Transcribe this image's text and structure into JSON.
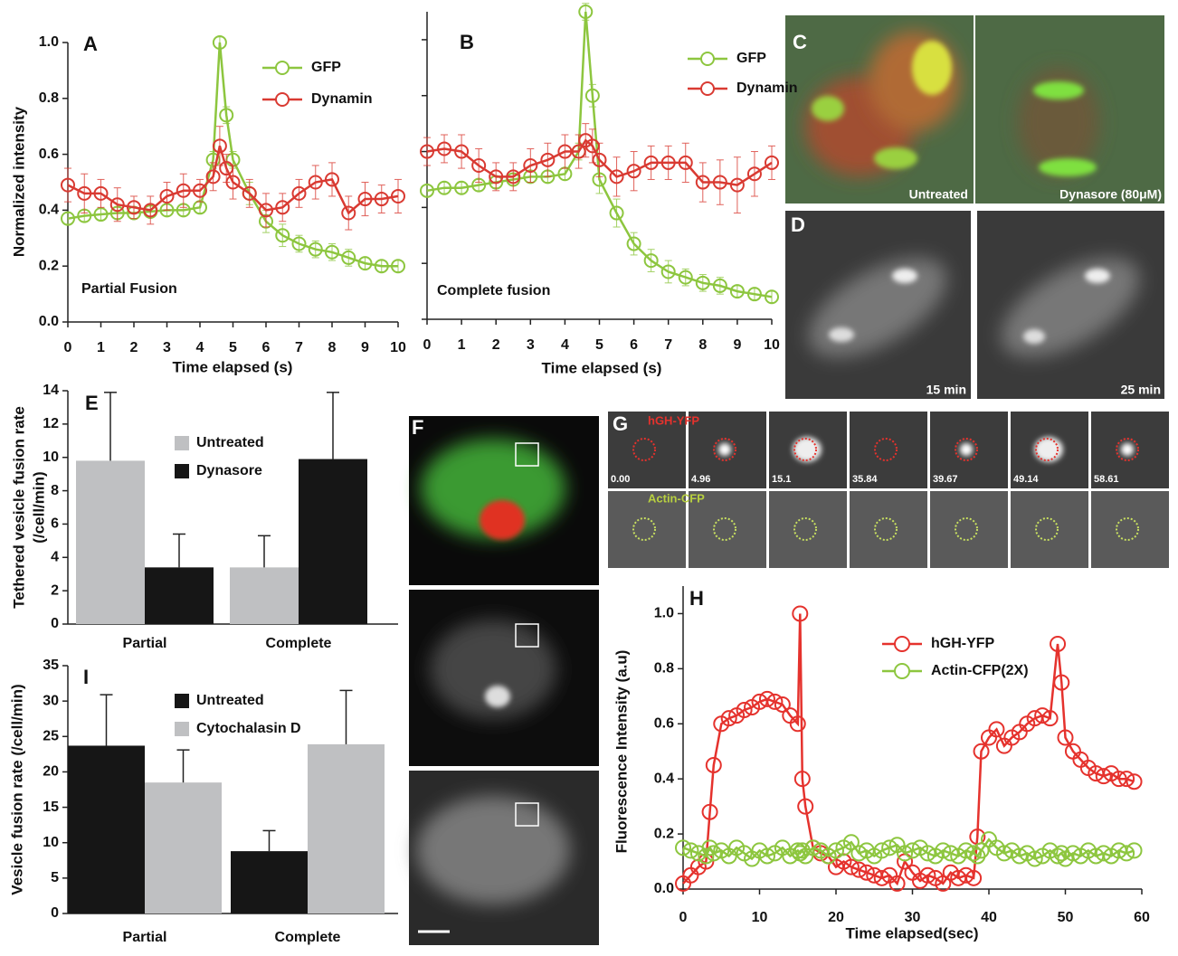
{
  "chart_data": [
    {
      "type": "line",
      "panel": "A",
      "ylabel": "Normalized intensity",
      "xlabel": "Time elapsed (s)",
      "annotation": "Partial Fusion",
      "legend": "upper right",
      "x": [
        0,
        0.5,
        1,
        1.5,
        2,
        2.5,
        3,
        3.5,
        4,
        4.4,
        4.6,
        4.8,
        5,
        5.5,
        6,
        6.5,
        7,
        7.5,
        8,
        8.5,
        9,
        9.5,
        10
      ],
      "series": [
        {
          "name": "GFP",
          "color": "#8dc63f",
          "values": [
            0.37,
            0.38,
            0.385,
            0.39,
            0.39,
            0.395,
            0.4,
            0.4,
            0.41,
            0.58,
            1.0,
            0.74,
            0.58,
            0.46,
            0.36,
            0.31,
            0.28,
            0.26,
            0.25,
            0.23,
            0.21,
            0.2,
            0.2
          ],
          "errors": [
            0.02,
            0.02,
            0.02,
            0.02,
            0.02,
            0.02,
            0.02,
            0.02,
            0.02,
            0.03,
            0.02,
            0.03,
            0.03,
            0.04,
            0.04,
            0.04,
            0.03,
            0.03,
            0.03,
            0.03,
            0.02,
            0.02,
            0.02
          ]
        },
        {
          "name": "Dynamin",
          "color": "#d93a32",
          "values": [
            0.49,
            0.46,
            0.46,
            0.42,
            0.41,
            0.4,
            0.45,
            0.47,
            0.47,
            0.52,
            0.63,
            0.55,
            0.5,
            0.46,
            0.4,
            0.41,
            0.46,
            0.5,
            0.51,
            0.39,
            0.44,
            0.44,
            0.45
          ],
          "errors": [
            0.06,
            0.07,
            0.05,
            0.06,
            0.04,
            0.05,
            0.05,
            0.06,
            0.04,
            0.05,
            0.07,
            0.05,
            0.06,
            0.05,
            0.06,
            0.05,
            0.05,
            0.06,
            0.06,
            0.06,
            0.06,
            0.05,
            0.06
          ]
        }
      ],
      "xlim": [
        0,
        10
      ],
      "xticks": [
        0,
        1,
        2,
        3,
        4,
        5,
        6,
        7,
        8,
        9,
        10
      ],
      "ylim": [
        0,
        1
      ],
      "yticks": [
        {
          "value": 0,
          "label": "0.0"
        },
        0.2,
        0.4,
        0.6,
        0.8,
        {
          "value": 1,
          "label": "1.0"
        }
      ]
    },
    {
      "type": "line",
      "panel": "B",
      "xlabel": "Time elapsed (s)",
      "annotation": "Complete fusion",
      "legend": "upper right",
      "ytick_labels": false,
      "x": [
        0,
        0.5,
        1,
        1.5,
        2,
        2.5,
        3,
        3.5,
        4,
        4.4,
        4.6,
        4.8,
        5,
        5.5,
        6,
        6.5,
        7,
        7.5,
        8,
        8.5,
        9,
        9.5,
        10
      ],
      "series": [
        {
          "name": "GFP",
          "color": "#8dc63f",
          "values": [
            0.46,
            0.47,
            0.47,
            0.48,
            0.49,
            0.5,
            0.51,
            0.51,
            0.52,
            0.6,
            1.1,
            0.8,
            0.5,
            0.38,
            0.27,
            0.21,
            0.17,
            0.15,
            0.13,
            0.12,
            0.1,
            0.09,
            0.08
          ],
          "errors": [
            0.02,
            0.02,
            0.02,
            0.02,
            0.02,
            0.02,
            0.02,
            0.02,
            0.02,
            0.03,
            0.03,
            0.04,
            0.05,
            0.05,
            0.04,
            0.04,
            0.04,
            0.03,
            0.03,
            0.03,
            0.02,
            0.02,
            0.02
          ]
        },
        {
          "name": "Dynamin",
          "color": "#d93a32",
          "values": [
            0.6,
            0.61,
            0.6,
            0.55,
            0.51,
            0.51,
            0.55,
            0.57,
            0.6,
            0.6,
            0.64,
            0.62,
            0.57,
            0.51,
            0.53,
            0.56,
            0.56,
            0.56,
            0.49,
            0.49,
            0.48,
            0.52,
            0.56
          ],
          "errors": [
            0.05,
            0.05,
            0.06,
            0.06,
            0.05,
            0.05,
            0.06,
            0.06,
            0.06,
            0.06,
            0.06,
            0.06,
            0.06,
            0.07,
            0.07,
            0.06,
            0.06,
            0.07,
            0.07,
            0.08,
            0.1,
            0.08,
            0.06
          ]
        }
      ],
      "xlim": [
        0,
        10
      ],
      "xticks": [
        0,
        1,
        2,
        3,
        4,
        5,
        6,
        7,
        8,
        9,
        10
      ],
      "ylim": [
        0,
        1.1
      ],
      "yticks": [
        0,
        0.2,
        0.4,
        0.6,
        0.8,
        1
      ]
    },
    {
      "type": "bar",
      "panel": "E",
      "ylabel": [
        "Tethered vesicle fusion rate",
        "(/cell/min)"
      ],
      "legend": "upper center",
      "categories": [
        "Partial",
        "Complete"
      ],
      "series": [
        {
          "name": "Untreated",
          "color": "#bfc0c2",
          "values": [
            9.8,
            3.4
          ],
          "errors": [
            4.1,
            1.9
          ]
        },
        {
          "name": "Dynasore",
          "color": "#161616",
          "values": [
            3.4,
            9.9
          ],
          "errors": [
            2.0,
            4.0
          ]
        }
      ],
      "ylim": [
        0,
        14
      ],
      "yticks": [
        0,
        2,
        4,
        6,
        8,
        10,
        12,
        14
      ]
    },
    {
      "type": "bar",
      "panel": "I",
      "ylabel": [
        "Vesicle fusion rate (/cell/min)"
      ],
      "legend": "upper center",
      "categories": [
        "Partial",
        "Complete"
      ],
      "series": [
        {
          "name": "Untreated",
          "color": "#161616",
          "values": [
            23.7,
            8.8
          ],
          "errors": [
            7.2,
            2.9
          ]
        },
        {
          "name": "Cytochalasin D",
          "color": "#bfc0c2",
          "values": [
            18.5,
            23.9
          ],
          "errors": [
            4.6,
            7.6
          ]
        }
      ],
      "ylim": [
        0,
        35
      ],
      "yticks": [
        0,
        5,
        10,
        15,
        20,
        25,
        30,
        35
      ]
    },
    {
      "type": "line",
      "panel": "H",
      "ylabel": "Fluorescence Intensity (a.u)",
      "xlabel": "Time elapsed(sec)",
      "legend": "upper center",
      "x": [
        0,
        1,
        2,
        3,
        3.5,
        4,
        5,
        6,
        7,
        8,
        9,
        10,
        11,
        12,
        13,
        14,
        15,
        15.3,
        15.6,
        16,
        17,
        18,
        19,
        20,
        21,
        22,
        23,
        24,
        25,
        26,
        27,
        28,
        29,
        30,
        31,
        32,
        33,
        34,
        35,
        36,
        37,
        38,
        38.5,
        39,
        40,
        41,
        42,
        43,
        44,
        45,
        46,
        47,
        48,
        49,
        49.5,
        50,
        51,
        52,
        53,
        54,
        55,
        56,
        57,
        58,
        59
      ],
      "series": [
        {
          "name": "hGH-YFP",
          "color": "#e5322d",
          "values": [
            0.02,
            0.05,
            0.08,
            0.1,
            0.28,
            0.45,
            0.6,
            0.62,
            0.63,
            0.65,
            0.66,
            0.68,
            0.69,
            0.68,
            0.67,
            0.63,
            0.6,
            1.0,
            0.4,
            0.3,
            0.15,
            0.13,
            0.12,
            0.08,
            0.1,
            0.08,
            0.07,
            0.06,
            0.05,
            0.04,
            0.05,
            0.02,
            0.1,
            0.06,
            0.03,
            0.05,
            0.04,
            0.02,
            0.06,
            0.04,
            0.05,
            0.04,
            0.19,
            0.5,
            0.55,
            0.58,
            0.52,
            0.55,
            0.57,
            0.6,
            0.62,
            0.63,
            0.62,
            0.89,
            0.75,
            0.55,
            0.5,
            0.47,
            0.44,
            0.42,
            0.41,
            0.42,
            0.4,
            0.4,
            0.39
          ]
        },
        {
          "name": "Actin-CFP(2X)",
          "color": "#8dc63f",
          "values": [
            0.15,
            0.14,
            0.13,
            0.12,
            0.15,
            0.13,
            0.14,
            0.12,
            0.15,
            0.13,
            0.11,
            0.14,
            0.12,
            0.13,
            0.15,
            0.12,
            0.14,
            0.13,
            0.14,
            0.12,
            0.15,
            0.14,
            0.12,
            0.14,
            0.15,
            0.17,
            0.13,
            0.14,
            0.12,
            0.14,
            0.15,
            0.16,
            0.13,
            0.14,
            0.15,
            0.13,
            0.12,
            0.14,
            0.13,
            0.12,
            0.14,
            0.13,
            0.12,
            0.14,
            0.18,
            0.15,
            0.13,
            0.14,
            0.12,
            0.13,
            0.11,
            0.12,
            0.14,
            0.12,
            0.13,
            0.11,
            0.13,
            0.12,
            0.14,
            0.12,
            0.13,
            0.12,
            0.14,
            0.13,
            0.14
          ]
        }
      ],
      "xlim": [
        0,
        60
      ],
      "xticks": [
        0,
        10,
        20,
        30,
        40,
        50,
        60
      ],
      "ylim": [
        0,
        1.1
      ],
      "yticks": [
        {
          "value": 0,
          "label": "0.0"
        },
        0.2,
        0.4,
        0.6,
        0.8,
        {
          "value": 1,
          "label": "1.0"
        }
      ]
    }
  ],
  "images": {
    "C": {
      "label": "C",
      "captions": [
        "Untreated",
        "Dynasore (80μM)"
      ]
    },
    "D": {
      "label": "D",
      "captions": [
        "15 min",
        "25 min"
      ]
    },
    "F": {
      "label": "F"
    },
    "G": {
      "label": "G",
      "rows": [
        "hGH-YFP",
        "Actin-CFP"
      ],
      "times": [
        "0.00",
        "4.96",
        "15.1",
        "35.84",
        "39.67",
        "49.14",
        "58.61"
      ]
    }
  }
}
